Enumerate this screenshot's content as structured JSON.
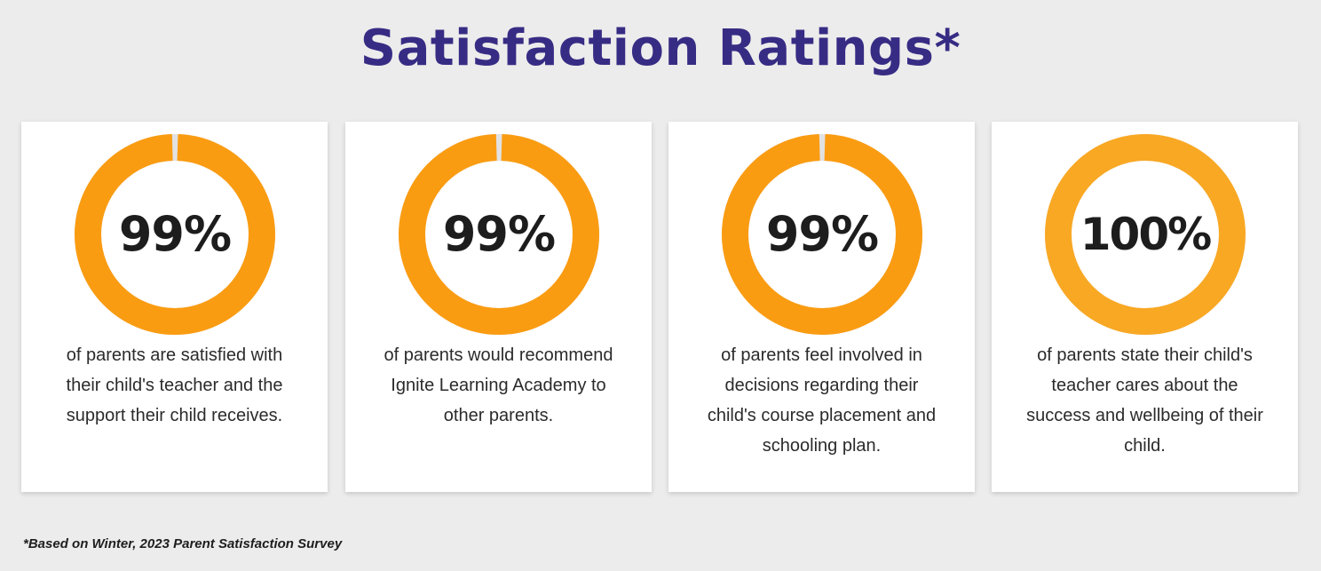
{
  "page": {
    "title": "Satisfaction Ratings*",
    "footnote": "*Based on Winter, 2023 Parent Satisfaction Survey"
  },
  "colors": {
    "title": "#372c84",
    "ring": "#fa9c12",
    "ring_full": "#f9a824",
    "ring_remainder": "#e2e2e2",
    "background": "#ececec",
    "card": "#ffffff"
  },
  "cards": [
    {
      "value": "99%",
      "percent": 99,
      "description": "of parents are satisfied with their child's teacher and the support their child receives."
    },
    {
      "value": "99%",
      "percent": 99,
      "description": "of parents would recommend Ignite Learning Academy to other parents."
    },
    {
      "value": "99%",
      "percent": 99,
      "description": "of parents feel involved in decisions regarding their child's course placement and schooling plan."
    },
    {
      "value": "100%",
      "percent": 100,
      "description": "of parents state their child's teacher cares about the success and wellbeing of their child."
    }
  ]
}
